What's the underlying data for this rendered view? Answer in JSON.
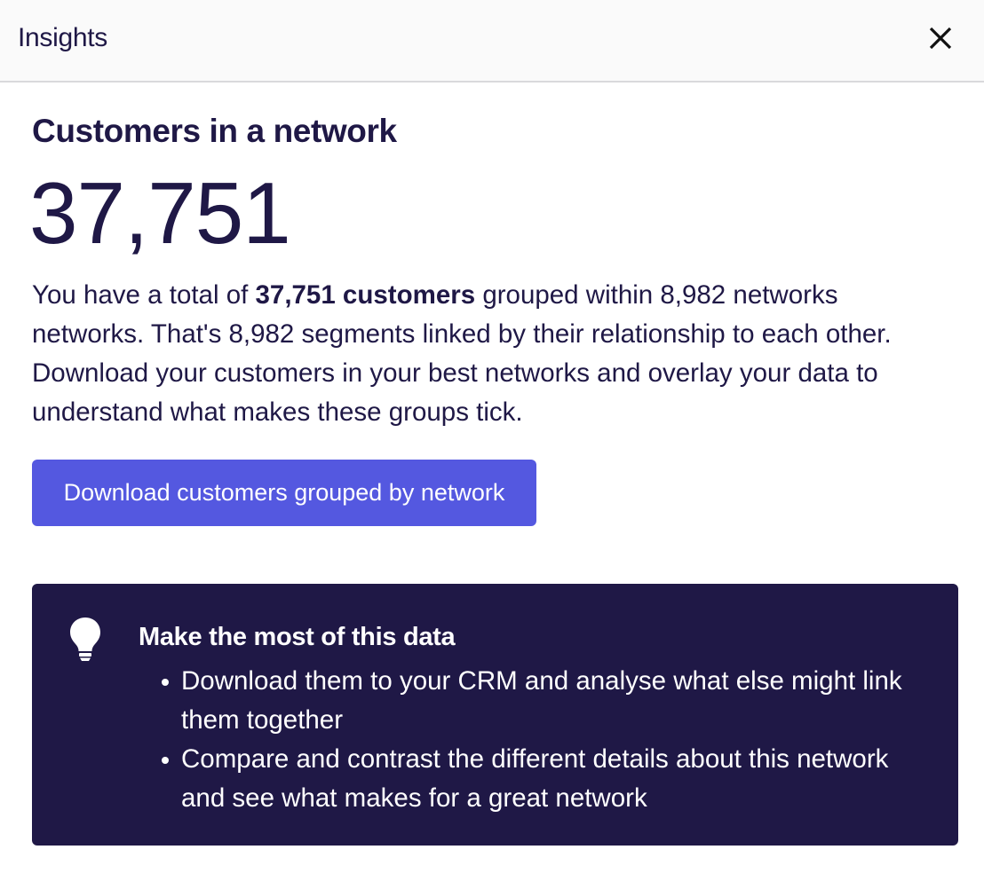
{
  "header": {
    "title": "Insights",
    "close_icon": "close-icon"
  },
  "insight": {
    "title": "Customers in a network",
    "total_customers": "37,751",
    "description": {
      "prefix": "You have a total of ",
      "bold": "37,751 customers",
      "suffix": " grouped within 8,982 networks networks. That's 8,982 segments linked by their relationship to each other. Download your customers in your best networks and overlay your data to understand what makes these groups tick."
    },
    "download_button_label": "Download customers grouped by network"
  },
  "tip": {
    "icon": "lightbulb-icon",
    "title": "Make the most of this data",
    "items": [
      "Download them to your CRM and analyse what else might link them together",
      "Compare and contrast the different details about this network and see what makes for a great network"
    ]
  },
  "colors": {
    "primary_text": "#1f1846",
    "button": "#5458e0",
    "tip_background": "#1f1846"
  }
}
